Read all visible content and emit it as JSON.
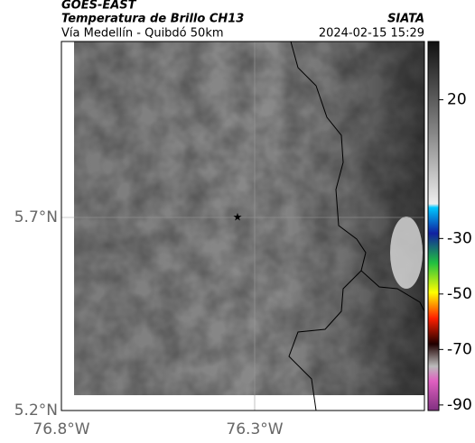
{
  "header": {
    "title": "GOES-EAST",
    "subtitle": "Temperatura de Brillo CH13",
    "source": "SIATA",
    "route": "Vía Medellín - Quibdó 50km",
    "datetime": "2024-02-15 15:29"
  },
  "map": {
    "lat_labels": [
      "5.7°N",
      "5.2°N"
    ],
    "lon_labels": [
      "76.8°W",
      "76.3°W"
    ]
  },
  "colorbar": {
    "range": [
      -92,
      41
    ],
    "ticks": [
      20,
      -30,
      -50,
      -70,
      -90
    ]
  }
}
